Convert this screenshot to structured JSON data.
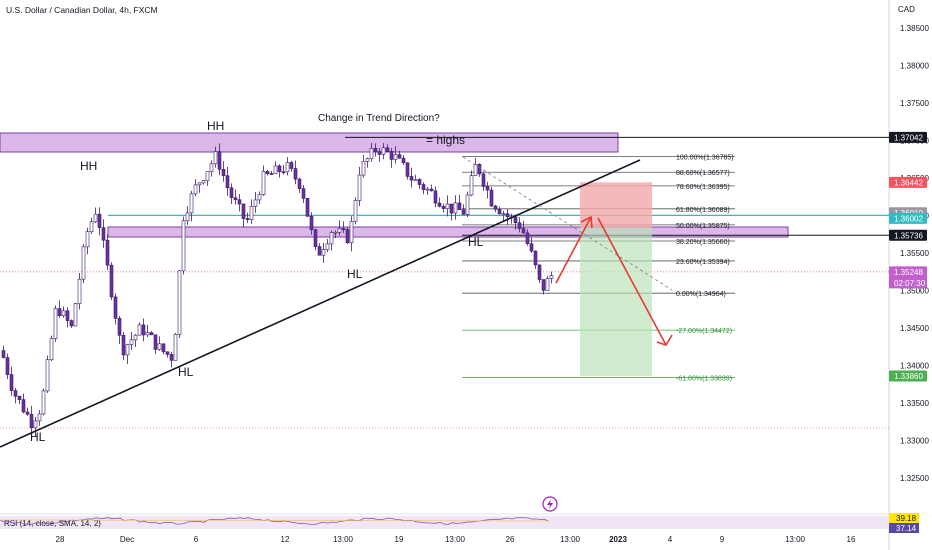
{
  "header": {
    "symbol_title": "U.S. Dollar / Canadian Dollar, 4h, FXCM",
    "currency": "CAD"
  },
  "annotations": {
    "trend_question": "Change in Trend Direction?",
    "highs_label": "= highs",
    "swing_labels": [
      "HH",
      "HH",
      "HL",
      "HL",
      "HL",
      "HL"
    ]
  },
  "chart_data": {
    "type": "candlestick",
    "symbol": "USDCAD",
    "timeframe": "4h",
    "source": "FXCM",
    "ylim": [
      1.32,
      1.39
    ],
    "y_ticks": [
      "1.38500",
      "1.38000",
      "1.37500",
      "1.37000",
      "1.36500",
      "1.36000",
      "1.35500",
      "1.35000",
      "1.34500",
      "1.34000",
      "1.33500",
      "1.33000",
      "1.32500"
    ],
    "x_ticks": [
      "28",
      "Dec",
      "6",
      "12",
      "13:00",
      "19",
      "13:00",
      "26",
      "13:00",
      "2023",
      "4",
      "9",
      "13:00",
      "16"
    ],
    "price_markers": [
      {
        "value": "1.37042",
        "style": "line"
      },
      {
        "value": "1.36442",
        "style": "stop"
      },
      {
        "value": "1.36010",
        "style": "gray"
      },
      {
        "value": "1.36002",
        "style": "cyan"
      },
      {
        "value": "1.35736",
        "style": "line"
      },
      {
        "value": "1.35248",
        "style": "current",
        "countdown": "02:07:30"
      },
      {
        "value": "1.33860",
        "style": "target"
      }
    ],
    "fibonacci": [
      {
        "label": "100.00%(1.36785)",
        "price": 1.36785
      },
      {
        "label": "88.60%(1.36577)",
        "price": 1.36577
      },
      {
        "label": "78.60%(1.36395)",
        "price": 1.36395
      },
      {
        "label": "61.80%(1.36089)",
        "price": 1.36089
      },
      {
        "label": "50.00%(1.35875)",
        "price": 1.35875
      },
      {
        "label": "38.20%(1.35660)",
        "price": 1.3566
      },
      {
        "label": "23.60%(1.35394)",
        "price": 1.35394
      },
      {
        "label": "0.00%(1.34964)",
        "price": 1.34964
      },
      {
        "label": "-27.00%(1.34472)",
        "price": 1.34472
      },
      {
        "label": "-61.80%(1.33839)",
        "price": 1.33839
      }
    ],
    "zones": [
      {
        "name": "resistance",
        "from": 1.369,
        "to": 1.3708
      },
      {
        "name": "support",
        "from": 1.357,
        "to": 1.358
      }
    ],
    "trade": {
      "entry": 1.3584,
      "stop": 1.36442,
      "target": 1.3386
    },
    "rsi": {
      "label": "RSI (14, close, SMA, 14, 2)",
      "value": "37.14",
      "sma": "39.18"
    },
    "colors": {
      "bull": "#ffffff",
      "bear": "#6a2fa0",
      "outline": "#3d1d6b",
      "zone": "#dcb8ea",
      "cyan": "#2fbcc4",
      "stop": "#f08f8f",
      "target": "#a8d8a0"
    }
  }
}
